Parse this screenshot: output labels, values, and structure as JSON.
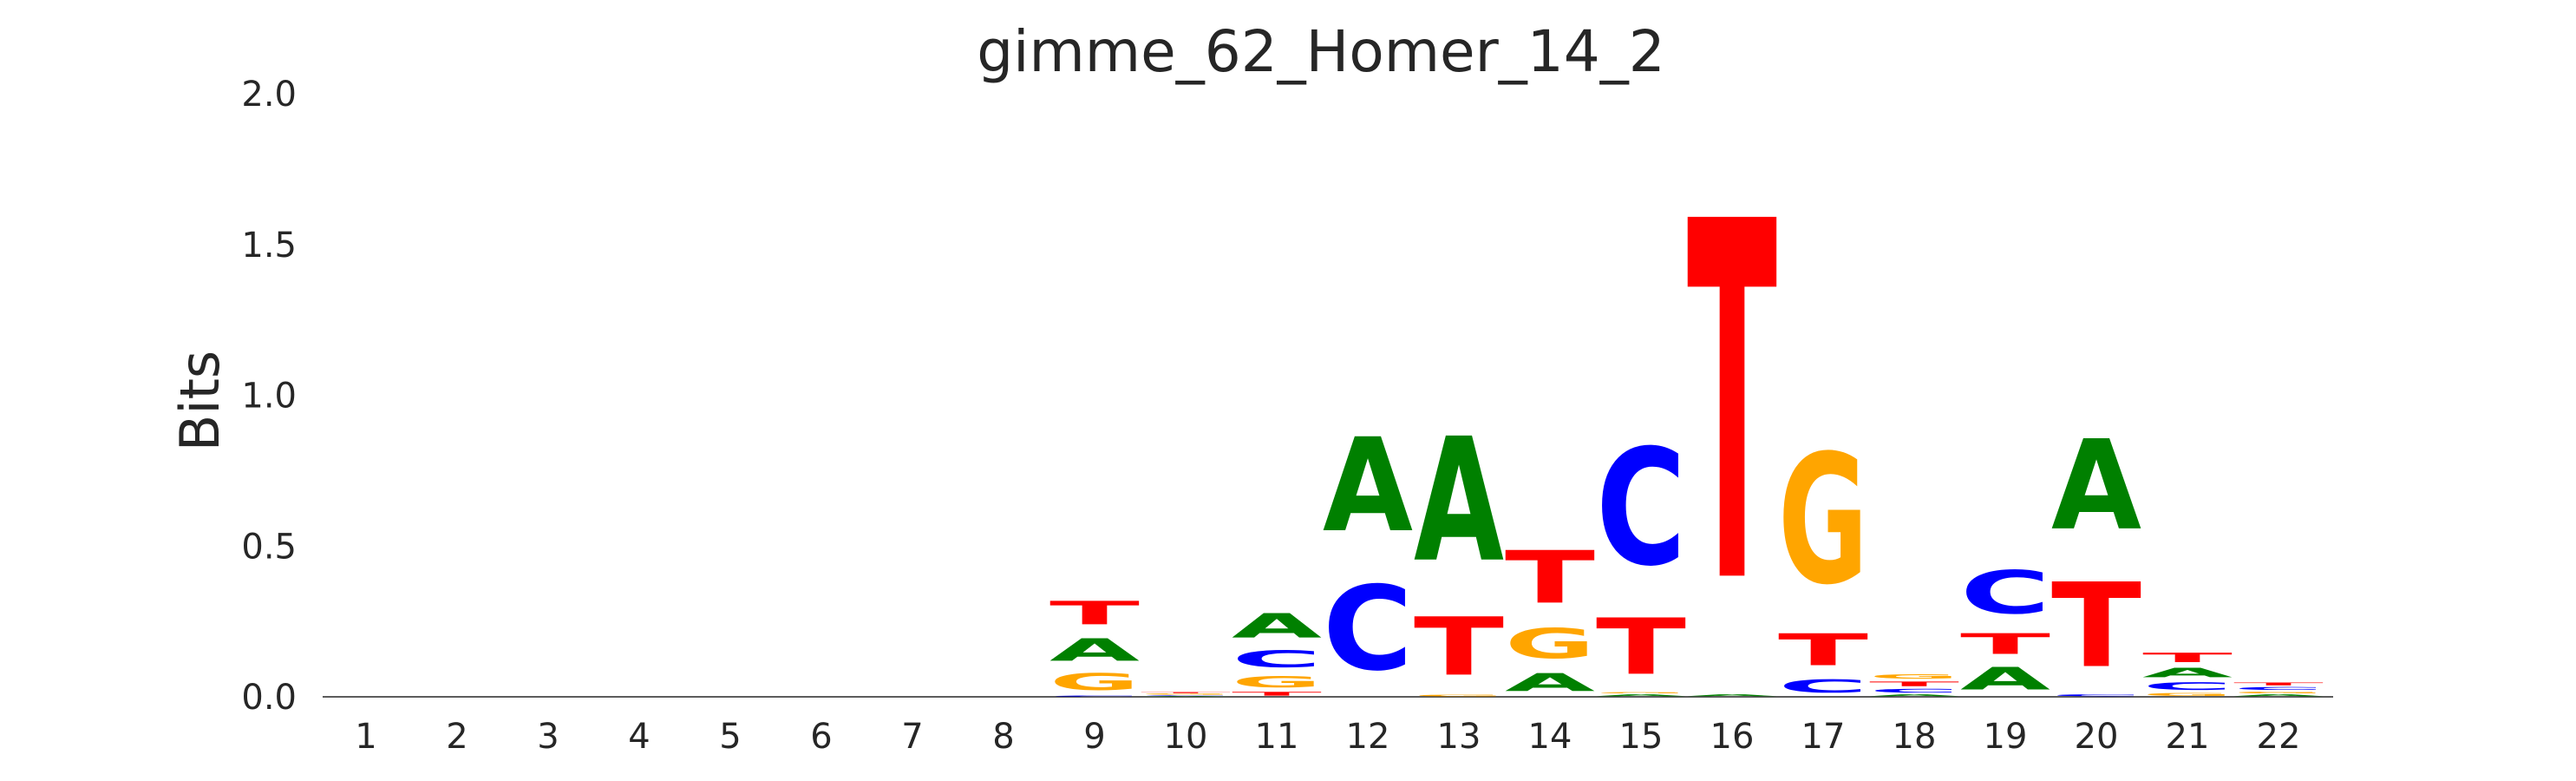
{
  "chart_data": {
    "type": "sequence-logo",
    "title": "gimme_62_Homer_14_2",
    "ylabel": "Bits",
    "xlabel": "",
    "ylim": [
      0,
      2.0
    ],
    "yticks": [
      "0.0",
      "0.5",
      "1.0",
      "1.5",
      "2.0"
    ],
    "grid": false,
    "colors": {
      "A": "#008000",
      "C": "#0000ff",
      "G": "#ffa500",
      "T": "#ff0000"
    },
    "positions": [
      {
        "pos": "1",
        "stack": []
      },
      {
        "pos": "2",
        "stack": []
      },
      {
        "pos": "3",
        "stack": []
      },
      {
        "pos": "4",
        "stack": []
      },
      {
        "pos": "5",
        "stack": []
      },
      {
        "pos": "6",
        "stack": []
      },
      {
        "pos": "7",
        "stack": []
      },
      {
        "pos": "8",
        "stack": []
      },
      {
        "pos": "9",
        "stack": [
          [
            "C",
            0.005
          ],
          [
            "G",
            0.09
          ],
          [
            "A",
            0.12
          ],
          [
            "T",
            0.125
          ]
        ]
      },
      {
        "pos": "10",
        "stack": [
          [
            "A",
            0.003
          ],
          [
            "C",
            0.003
          ],
          [
            "G",
            0.005
          ],
          [
            "T",
            0.006
          ]
        ]
      },
      {
        "pos": "11",
        "stack": [
          [
            "T",
            0.02
          ],
          [
            "G",
            0.06
          ],
          [
            "C",
            0.09
          ],
          [
            "A",
            0.13
          ]
        ]
      },
      {
        "pos": "12",
        "stack": [
          [
            "C",
            0.45
          ],
          [
            "A",
            0.5
          ]
        ]
      },
      {
        "pos": "13",
        "stack": [
          [
            "G",
            0.01
          ],
          [
            "T",
            0.31
          ],
          [
            "A",
            0.66
          ]
        ]
      },
      {
        "pos": "14",
        "stack": [
          [
            "A",
            0.095
          ],
          [
            "G",
            0.16
          ],
          [
            "T",
            0.28
          ]
        ]
      },
      {
        "pos": "15",
        "stack": [
          [
            "A",
            0.01
          ],
          [
            "G",
            0.005
          ],
          [
            "T",
            0.3
          ],
          [
            "C",
            0.62
          ]
        ]
      },
      {
        "pos": "16",
        "stack": [
          [
            "A",
            0.01
          ],
          [
            "T",
            1.91
          ]
        ]
      },
      {
        "pos": "17",
        "stack": [
          [
            "C",
            0.07
          ],
          [
            "T",
            0.17
          ],
          [
            "G",
            0.69
          ]
        ]
      },
      {
        "pos": "18",
        "stack": [
          [
            "A",
            0.01
          ],
          [
            "C",
            0.02
          ],
          [
            "T",
            0.025
          ],
          [
            "G",
            0.025
          ]
        ]
      },
      {
        "pos": "19",
        "stack": [
          [
            "A",
            0.12
          ],
          [
            "T",
            0.11
          ],
          [
            "C",
            0.23
          ]
        ]
      },
      {
        "pos": "20",
        "stack": [
          [
            "C",
            0.01
          ],
          [
            "T",
            0.45
          ],
          [
            "A",
            0.48
          ]
        ]
      },
      {
        "pos": "21",
        "stack": [
          [
            "G",
            0.015
          ],
          [
            "C",
            0.04
          ],
          [
            "A",
            0.05
          ],
          [
            "T",
            0.05
          ]
        ]
      },
      {
        "pos": "22",
        "stack": [
          [
            "A",
            0.01
          ],
          [
            "G",
            0.01
          ],
          [
            "C",
            0.015
          ],
          [
            "T",
            0.015
          ]
        ]
      }
    ]
  }
}
